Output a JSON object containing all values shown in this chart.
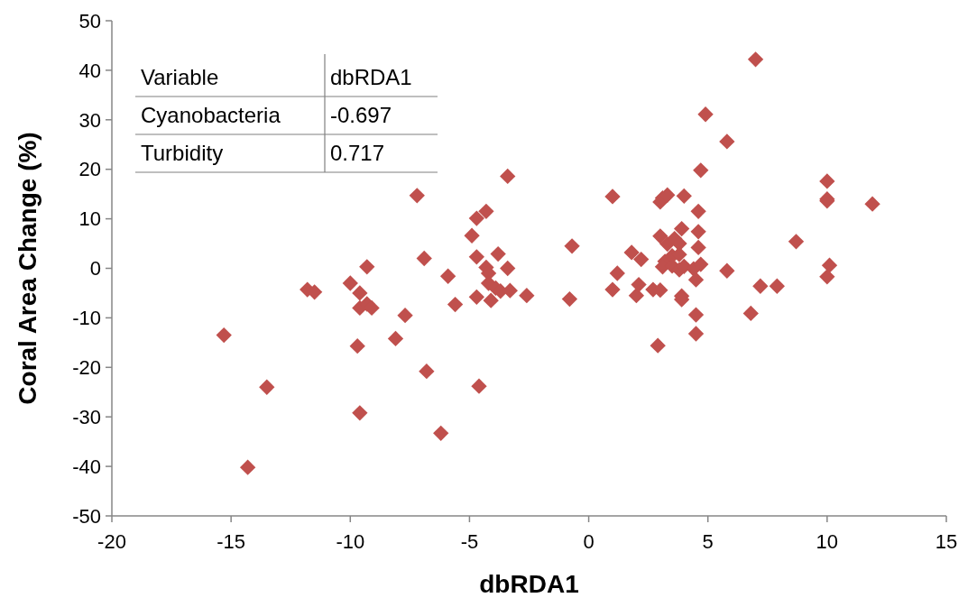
{
  "chart_data": {
    "type": "scatter",
    "xlabel": "dbRDA1",
    "ylabel": "Coral Area Change (%)",
    "xlim": [
      -20,
      15
    ],
    "xticks": [
      -20,
      -15,
      -10,
      -5,
      0,
      5,
      10,
      15
    ],
    "ylim": [
      -50,
      50
    ],
    "yticks": [
      -50,
      -40,
      -30,
      -20,
      -10,
      0,
      10,
      20,
      30,
      40,
      50
    ],
    "grid": false,
    "marker": "diamond",
    "annotations": [
      "Variable",
      "dbRDA1",
      "Cyanobacteria",
      "-0.697",
      "Turbidity",
      "0.717"
    ],
    "series": [
      {
        "color": "#c0504d",
        "x": [
          -15.3,
          -14.3,
          -13.5,
          -11.8,
          -11.5,
          -10,
          -9.7,
          -9.6,
          -9.6,
          -9.6,
          -9.3,
          -9.3,
          -9.1,
          -8.1,
          -7.7,
          -7.2,
          -6.9,
          -6.8,
          -6.2,
          -5.9,
          -5.6,
          -4.9,
          -4.7,
          -4.7,
          -4.7,
          -4.6,
          -4.3,
          -4.3,
          -4.2,
          -4.2,
          -4.1,
          -3.9,
          -3.8,
          -3.7,
          -3.4,
          -3.3,
          -3.4,
          -2.6,
          -0.7,
          -0.8,
          1.0,
          1.0,
          1.2,
          1.8,
          2.0,
          2.1,
          2.2,
          2.7,
          2.9,
          3.0,
          3.0,
          3.0,
          3.1,
          3.2,
          3.1,
          3.3,
          3.3,
          3.5,
          3.5,
          3.6,
          3.8,
          3.9,
          3.9,
          3.9,
          3.8,
          3.8,
          4.0,
          4.0,
          4.4,
          4.5,
          4.5,
          4.5,
          4.6,
          4.6,
          4.6,
          4.7,
          4.7,
          4.9,
          5.8,
          5.8,
          6.8,
          7.0,
          7.2,
          7.9,
          8.7,
          10.0,
          10.0,
          10.0,
          10.1,
          10.0,
          11.9
        ],
        "values": [
          -13.5,
          -40.2,
          -24,
          -4.3,
          -4.8,
          -3,
          -15.7,
          -5,
          -8,
          -29.2,
          -7.2,
          0.3,
          -8,
          -14.2,
          -9.5,
          14.7,
          2,
          -20.8,
          -33.3,
          -1.6,
          -7.3,
          6.6,
          10.1,
          2.3,
          -5.8,
          -23.8,
          11.5,
          0.2,
          -1,
          -3,
          -6.5,
          -4,
          2.9,
          -4.6,
          0,
          -4.5,
          18.6,
          -5.5,
          4.5,
          -6.2,
          14.5,
          -4.3,
          -1,
          3.2,
          -5.5,
          -3.3,
          1.8,
          -4.3,
          -15.6,
          -4.4,
          13.4,
          6.5,
          14.2,
          1.4,
          0.3,
          14.8,
          4.9,
          2.5,
          0.5,
          6,
          -0.3,
          -5.6,
          -6.3,
          8,
          5,
          2.8,
          14.6,
          0.4,
          -0.1,
          -2.3,
          -9.4,
          -13.2,
          7.4,
          4.2,
          11.5,
          0.8,
          19.8,
          31.1,
          25.6,
          -0.5,
          -9.1,
          42.2,
          -3.6,
          -3.6,
          5.4,
          17.6,
          14,
          13.6,
          0.6,
          -1.7,
          13
        ]
      }
    ]
  }
}
